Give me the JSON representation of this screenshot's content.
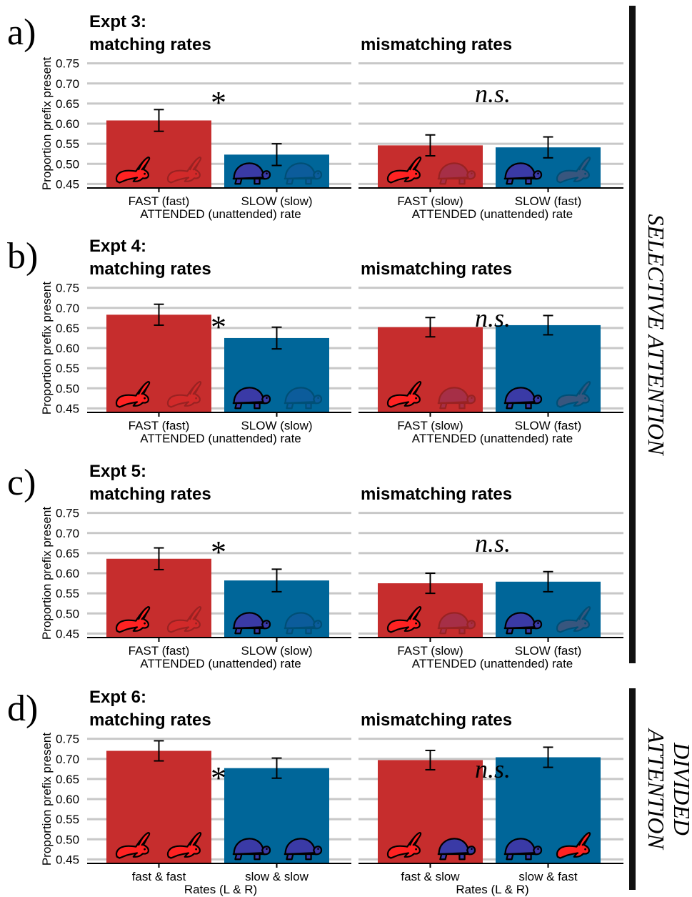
{
  "side_labels": {
    "selective": "SELECTIVE ATTENTION",
    "divided_line1": "DIVIDED",
    "divided_line2": "ATTENTION"
  },
  "colors": {
    "fast": "#c62d2d",
    "slow": "#006699",
    "rabbit": "#ff2222",
    "turtle": "#3a3aa6",
    "grid": "#c8c8c8",
    "side_bar": "#111111"
  },
  "icons": {
    "fast": "rabbit-icon",
    "slow": "turtle-icon"
  },
  "chart_data": [
    {
      "panel": "a)",
      "title": "Expt 3:",
      "type": "bar",
      "ylabel": "Proportion prefix present",
      "ylim": [
        0.44,
        0.76
      ],
      "yticks": [
        "0.75",
        "0.70",
        "0.65",
        "0.60",
        "0.55",
        "0.50",
        "0.45"
      ],
      "subplots": [
        {
          "subtitle": "matching rates",
          "annotation": "*",
          "xlabel": "ATTENDED (unattended) rate",
          "categories": [
            "FAST (fast)",
            "SLOW (slow)"
          ],
          "values": [
            0.608,
            0.523
          ],
          "errors": [
            0.027,
            0.027
          ],
          "colors": [
            "fast",
            "slow"
          ],
          "icons": [
            [
              "rabbit",
              "rabbit-faded"
            ],
            [
              "turtle",
              "turtle-faded"
            ]
          ]
        },
        {
          "subtitle": "mismatching rates",
          "annotation": "n.s.",
          "xlabel": "ATTENDED (unattended) rate",
          "categories": [
            "FAST (slow)",
            "SLOW (fast)"
          ],
          "values": [
            0.546,
            0.541
          ],
          "errors": [
            0.026,
            0.026
          ],
          "colors": [
            "fast",
            "slow"
          ],
          "icons": [
            [
              "rabbit",
              "turtle-faded"
            ],
            [
              "turtle",
              "rabbit-faded"
            ]
          ]
        }
      ]
    },
    {
      "panel": "b)",
      "title": "Expt 4:",
      "type": "bar",
      "ylabel": "Proportion prefix present",
      "ylim": [
        0.44,
        0.76
      ],
      "yticks": [
        "0.75",
        "0.70",
        "0.65",
        "0.60",
        "0.55",
        "0.50",
        "0.45"
      ],
      "subplots": [
        {
          "subtitle": "matching rates",
          "annotation": "*",
          "xlabel": "ATTENDED (unattended) rate",
          "categories": [
            "FAST (fast)",
            "SLOW (slow)"
          ],
          "values": [
            0.683,
            0.625
          ],
          "errors": [
            0.026,
            0.027
          ],
          "colors": [
            "fast",
            "slow"
          ],
          "icons": [
            [
              "rabbit",
              "rabbit-faded"
            ],
            [
              "turtle",
              "turtle-faded"
            ]
          ]
        },
        {
          "subtitle": "mismatching rates",
          "annotation": "n.s.",
          "xlabel": "ATTENDED (unattended) rate",
          "categories": [
            "FAST (slow)",
            "SLOW (fast)"
          ],
          "values": [
            0.652,
            0.657
          ],
          "errors": [
            0.024,
            0.024
          ],
          "colors": [
            "fast",
            "slow"
          ],
          "icons": [
            [
              "rabbit",
              "turtle-faded"
            ],
            [
              "turtle",
              "rabbit-faded"
            ]
          ]
        }
      ]
    },
    {
      "panel": "c)",
      "title": "Expt 5:",
      "type": "bar",
      "ylabel": "Proportion prefix present",
      "ylim": [
        0.44,
        0.76
      ],
      "yticks": [
        "0.75",
        "0.70",
        "0.65",
        "0.60",
        "0.55",
        "0.50",
        "0.45"
      ],
      "subplots": [
        {
          "subtitle": "matching rates",
          "annotation": "*",
          "xlabel": "ATTENDED (unattended) rate",
          "categories": [
            "FAST (fast)",
            "SLOW (slow)"
          ],
          "values": [
            0.636,
            0.582
          ],
          "errors": [
            0.027,
            0.028
          ],
          "colors": [
            "fast",
            "slow"
          ],
          "icons": [
            [
              "rabbit",
              "rabbit-faded"
            ],
            [
              "turtle",
              "turtle-faded"
            ]
          ]
        },
        {
          "subtitle": "mismatching rates",
          "annotation": "n.s.",
          "xlabel": "ATTENDED (unattended) rate",
          "categories": [
            "FAST (slow)",
            "SLOW (fast)"
          ],
          "values": [
            0.575,
            0.579
          ],
          "errors": [
            0.025,
            0.025
          ],
          "colors": [
            "fast",
            "slow"
          ],
          "icons": [
            [
              "rabbit",
              "turtle-faded"
            ],
            [
              "turtle",
              "rabbit-faded"
            ]
          ]
        }
      ]
    },
    {
      "panel": "d)",
      "title": "Expt 6:",
      "type": "bar",
      "ylabel": "Proportion prefix present",
      "ylim": [
        0.44,
        0.76
      ],
      "yticks": [
        "0.75",
        "0.70",
        "0.65",
        "0.60",
        "0.55",
        "0.50",
        "0.45"
      ],
      "subplots": [
        {
          "subtitle": "matching rates",
          "annotation": "*",
          "xlabel": "Rates (L & R)",
          "categories": [
            "fast & fast",
            "slow & slow"
          ],
          "values": [
            0.72,
            0.677
          ],
          "errors": [
            0.025,
            0.025
          ],
          "colors": [
            "fast",
            "slow"
          ],
          "icons": [
            [
              "rabbit",
              "rabbit"
            ],
            [
              "turtle",
              "turtle"
            ]
          ]
        },
        {
          "subtitle": "mismatching rates",
          "annotation": "n.s.",
          "xlabel": "Rates (L & R)",
          "categories": [
            "fast & slow",
            "slow & fast"
          ],
          "values": [
            0.697,
            0.704
          ],
          "errors": [
            0.024,
            0.025
          ],
          "colors": [
            "fast",
            "slow"
          ],
          "icons": [
            [
              "rabbit",
              "turtle"
            ],
            [
              "turtle",
              "rabbit"
            ]
          ]
        }
      ]
    }
  ]
}
